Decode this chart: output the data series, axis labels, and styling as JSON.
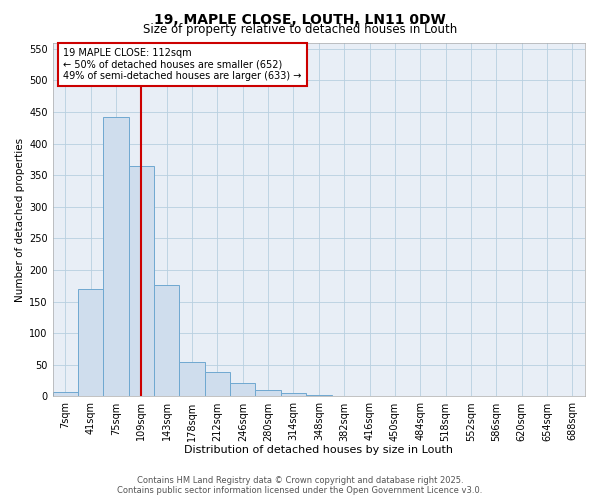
{
  "title": "19, MAPLE CLOSE, LOUTH, LN11 0DW",
  "subtitle": "Size of property relative to detached houses in Louth",
  "xlabel": "Distribution of detached houses by size in Louth",
  "ylabel": "Number of detached properties",
  "categories": [
    "7sqm",
    "41sqm",
    "75sqm",
    "109sqm",
    "143sqm",
    "178sqm",
    "212sqm",
    "246sqm",
    "280sqm",
    "314sqm",
    "348sqm",
    "382sqm",
    "416sqm",
    "450sqm",
    "484sqm",
    "518sqm",
    "552sqm",
    "586sqm",
    "620sqm",
    "654sqm",
    "688sqm"
  ],
  "values": [
    7,
    170,
    442,
    365,
    176,
    55,
    39,
    21,
    10,
    5,
    2,
    1,
    0,
    0,
    0,
    0,
    0,
    0,
    0,
    0,
    0
  ],
  "bar_color": "#cfdded",
  "bar_edge_color": "#6fa8d0",
  "grid_color": "#b8cfe0",
  "bg_color": "#e8eef6",
  "vline_x_index": 3,
  "vline_color": "#cc0000",
  "annotation_text": "19 MAPLE CLOSE: 112sqm\n← 50% of detached houses are smaller (652)\n49% of semi-detached houses are larger (633) →",
  "annotation_box_color": "#ffffff",
  "annotation_box_edge": "#cc0000",
  "ylim": [
    0,
    560
  ],
  "yticks": [
    0,
    50,
    100,
    150,
    200,
    250,
    300,
    350,
    400,
    450,
    500,
    550
  ],
  "title_fontsize": 10,
  "subtitle_fontsize": 8.5,
  "xlabel_fontsize": 8,
  "ylabel_fontsize": 7.5,
  "tick_fontsize": 7,
  "annot_fontsize": 7,
  "footer_fontsize": 6,
  "footer_line1": "Contains HM Land Registry data © Crown copyright and database right 2025.",
  "footer_line2": "Contains public sector information licensed under the Open Government Licence v3.0."
}
